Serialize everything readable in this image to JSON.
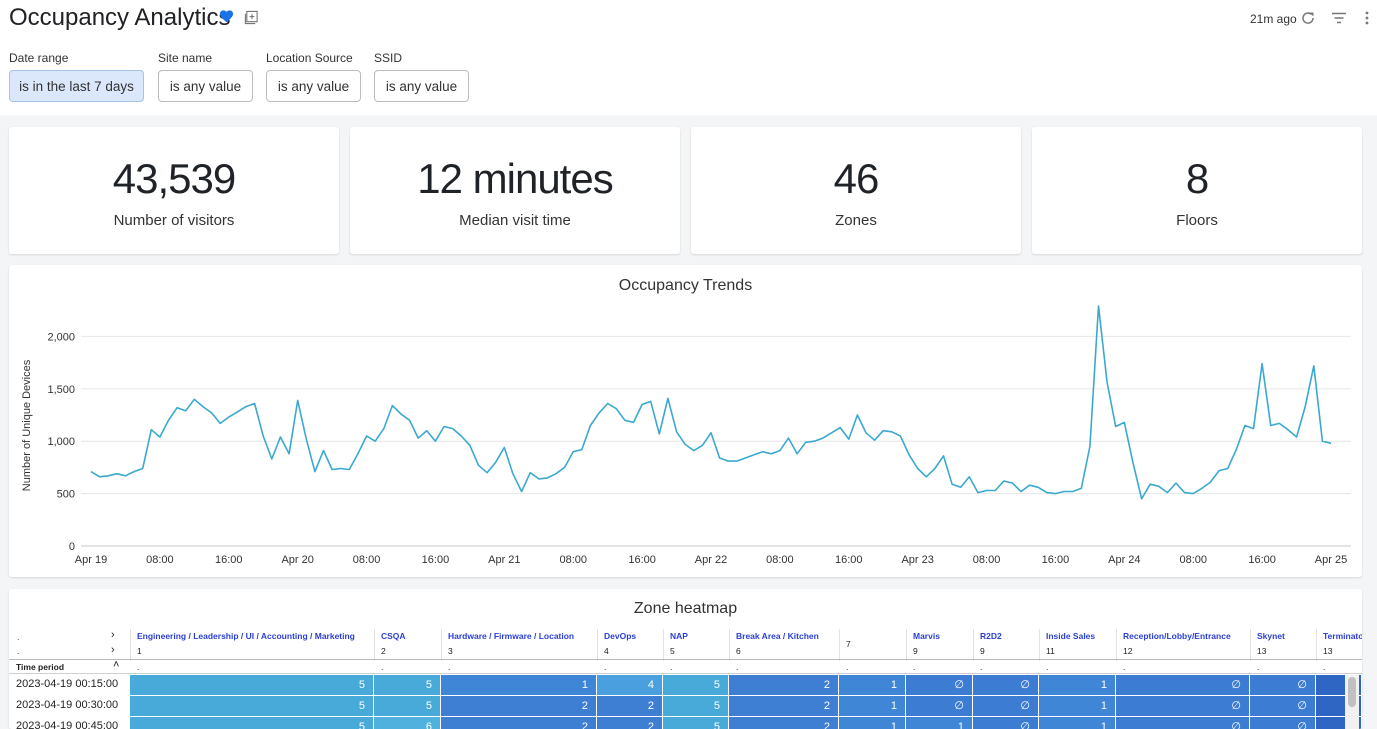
{
  "header": {
    "title": "Occupancy Analytics",
    "updated": "21m ago"
  },
  "filters": [
    {
      "label": "Date range",
      "value": "is in the last 7 days"
    },
    {
      "label": "Site name",
      "value": "is any value"
    },
    {
      "label": "Location Source",
      "value": "is any value"
    },
    {
      "label": "SSID",
      "value": "is any value"
    }
  ],
  "kpis": [
    {
      "value": "43,539",
      "label": "Number of visitors"
    },
    {
      "value": "12 minutes",
      "label": "Median visit time"
    },
    {
      "value": "46",
      "label": "Zones"
    },
    {
      "value": "8",
      "label": "Floors"
    }
  ],
  "chart_data": {
    "type": "line",
    "title": "Occupancy Trends",
    "ylabel": "Number of Unique Devices",
    "xlabel": "",
    "ylim": [
      0,
      2300
    ],
    "yticks": [
      0,
      500,
      1000,
      1500,
      2000
    ],
    "ytick_labels": [
      "0",
      "500",
      "1,000",
      "1,500",
      "2,000"
    ],
    "xticks": [
      {
        "at": 0,
        "label": "Apr 19"
      },
      {
        "at": 8,
        "label": "08:00"
      },
      {
        "at": 16,
        "label": "16:00"
      },
      {
        "at": 24,
        "label": "Apr 20"
      },
      {
        "at": 32,
        "label": "08:00"
      },
      {
        "at": 40,
        "label": "16:00"
      },
      {
        "at": 48,
        "label": "Apr 21"
      },
      {
        "at": 56,
        "label": "08:00"
      },
      {
        "at": 64,
        "label": "16:00"
      },
      {
        "at": 72,
        "label": "Apr 22"
      },
      {
        "at": 80,
        "label": "08:00"
      },
      {
        "at": 88,
        "label": "16:00"
      },
      {
        "at": 96,
        "label": "Apr 23"
      },
      {
        "at": 104,
        "label": "08:00"
      },
      {
        "at": 112,
        "label": "16:00"
      },
      {
        "at": 120,
        "label": "Apr 24"
      },
      {
        "at": 128,
        "label": "08:00"
      },
      {
        "at": 136,
        "label": "16:00"
      },
      {
        "at": 144,
        "label": "Apr 25"
      }
    ],
    "xlim": [
      0,
      144
    ],
    "grid": true,
    "color": "#3aa9d0",
    "series": [
      {
        "values": [
          [
            0,
            710
          ],
          [
            1,
            660
          ],
          [
            2,
            670
          ],
          [
            3,
            690
          ],
          [
            4,
            670
          ],
          [
            5,
            710
          ],
          [
            6,
            740
          ],
          [
            7,
            1110
          ],
          [
            8,
            1040
          ],
          [
            9,
            1200
          ],
          [
            10,
            1320
          ],
          [
            11,
            1290
          ],
          [
            12,
            1400
          ],
          [
            13,
            1330
          ],
          [
            14,
            1270
          ],
          [
            15,
            1170
          ],
          [
            16,
            1230
          ],
          [
            17,
            1280
          ],
          [
            18,
            1330
          ],
          [
            19,
            1360
          ],
          [
            20,
            1050
          ],
          [
            21,
            830
          ],
          [
            22,
            1040
          ],
          [
            23,
            880
          ],
          [
            24,
            1390
          ],
          [
            25,
            1020
          ],
          [
            26,
            710
          ],
          [
            27,
            910
          ],
          [
            28,
            730
          ],
          [
            29,
            740
          ],
          [
            30,
            730
          ],
          [
            31,
            880
          ],
          [
            32,
            1050
          ],
          [
            33,
            1000
          ],
          [
            34,
            1120
          ],
          [
            35,
            1340
          ],
          [
            36,
            1260
          ],
          [
            37,
            1200
          ],
          [
            38,
            1030
          ],
          [
            39,
            1100
          ],
          [
            40,
            1000
          ],
          [
            41,
            1140
          ],
          [
            42,
            1120
          ],
          [
            43,
            1050
          ],
          [
            44,
            960
          ],
          [
            45,
            770
          ],
          [
            46,
            700
          ],
          [
            47,
            800
          ],
          [
            48,
            940
          ],
          [
            49,
            690
          ],
          [
            50,
            520
          ],
          [
            51,
            700
          ],
          [
            52,
            640
          ],
          [
            53,
            650
          ],
          [
            54,
            690
          ],
          [
            55,
            750
          ],
          [
            56,
            900
          ],
          [
            57,
            920
          ],
          [
            58,
            1150
          ],
          [
            59,
            1270
          ],
          [
            60,
            1360
          ],
          [
            61,
            1310
          ],
          [
            62,
            1200
          ],
          [
            63,
            1180
          ],
          [
            64,
            1350
          ],
          [
            65,
            1380
          ],
          [
            66,
            1070
          ],
          [
            67,
            1410
          ],
          [
            68,
            1090
          ],
          [
            69,
            970
          ],
          [
            70,
            910
          ],
          [
            71,
            960
          ],
          [
            72,
            1080
          ],
          [
            73,
            840
          ],
          [
            74,
            810
          ],
          [
            75,
            810
          ],
          [
            76,
            840
          ],
          [
            77,
            870
          ],
          [
            78,
            900
          ],
          [
            79,
            880
          ],
          [
            80,
            910
          ],
          [
            81,
            1030
          ],
          [
            82,
            880
          ],
          [
            83,
            990
          ],
          [
            84,
            1000
          ],
          [
            85,
            1030
          ],
          [
            86,
            1080
          ],
          [
            87,
            1130
          ],
          [
            88,
            1020
          ],
          [
            89,
            1250
          ],
          [
            90,
            1080
          ],
          [
            91,
            1010
          ],
          [
            92,
            1100
          ],
          [
            93,
            1090
          ],
          [
            94,
            1050
          ],
          [
            95,
            870
          ],
          [
            96,
            740
          ],
          [
            97,
            660
          ],
          [
            98,
            740
          ],
          [
            99,
            860
          ],
          [
            100,
            590
          ],
          [
            101,
            560
          ],
          [
            102,
            660
          ],
          [
            103,
            510
          ],
          [
            104,
            530
          ],
          [
            105,
            530
          ],
          [
            106,
            620
          ],
          [
            107,
            600
          ],
          [
            108,
            520
          ],
          [
            109,
            580
          ],
          [
            110,
            560
          ],
          [
            111,
            510
          ],
          [
            112,
            500
          ],
          [
            113,
            520
          ],
          [
            114,
            520
          ],
          [
            115,
            550
          ],
          [
            116,
            950
          ],
          [
            117,
            2290
          ],
          [
            118,
            1560
          ],
          [
            119,
            1140
          ],
          [
            120,
            1180
          ],
          [
            121,
            800
          ],
          [
            122,
            450
          ],
          [
            123,
            590
          ],
          [
            124,
            570
          ],
          [
            125,
            510
          ],
          [
            126,
            600
          ],
          [
            127,
            510
          ],
          [
            128,
            500
          ],
          [
            129,
            550
          ],
          [
            130,
            610
          ],
          [
            131,
            720
          ],
          [
            132,
            740
          ],
          [
            133,
            920
          ],
          [
            134,
            1150
          ],
          [
            135,
            1120
          ],
          [
            136,
            1740
          ],
          [
            137,
            1150
          ],
          [
            138,
            1170
          ],
          [
            139,
            1110
          ],
          [
            140,
            1040
          ],
          [
            141,
            1330
          ],
          [
            142,
            1720
          ],
          [
            143,
            1000
          ],
          [
            144,
            980
          ]
        ]
      }
    ]
  },
  "heatmap": {
    "title": "Zone heatmap",
    "row_header": "Time period",
    "zones": [
      {
        "name": "Engineering / Leadership / UI / Accounting / Marketing",
        "num": "1"
      },
      {
        "name": "CSQA",
        "num": "2"
      },
      {
        "name": "Hardware / Firmware / Location",
        "num": "3"
      },
      {
        "name": "DevOps",
        "num": "4"
      },
      {
        "name": "NAP",
        "num": "5"
      },
      {
        "name": "Break Area / Kitchen",
        "num": "6"
      },
      {
        "name": "",
        "num": "7"
      },
      {
        "name": "Marvis",
        "num": "9"
      },
      {
        "name": "R2D2",
        "num": "9"
      },
      {
        "name": "Inside Sales",
        "num": "11"
      },
      {
        "name": "Reception/Lobby/Entrance",
        "num": "12"
      },
      {
        "name": "Skynet",
        "num": "13"
      },
      {
        "name": "Terminator",
        "num": "13"
      }
    ],
    "rows": [
      {
        "time": "2023-04-19 00:15:00",
        "values": [
          "5",
          "5",
          "1",
          "4",
          "5",
          "2",
          "1",
          "∅",
          "∅",
          "1",
          "∅",
          "∅",
          ""
        ]
      },
      {
        "time": "2023-04-19 00:30:00",
        "values": [
          "5",
          "5",
          "2",
          "2",
          "5",
          "2",
          "1",
          "∅",
          "∅",
          "1",
          "∅",
          "∅",
          ""
        ]
      },
      {
        "time": "2023-04-19 00:45:00",
        "values": [
          "5",
          "6",
          "2",
          "2",
          "5",
          "2",
          "1",
          "1",
          "∅",
          "1",
          "∅",
          "∅",
          ""
        ]
      }
    ]
  }
}
